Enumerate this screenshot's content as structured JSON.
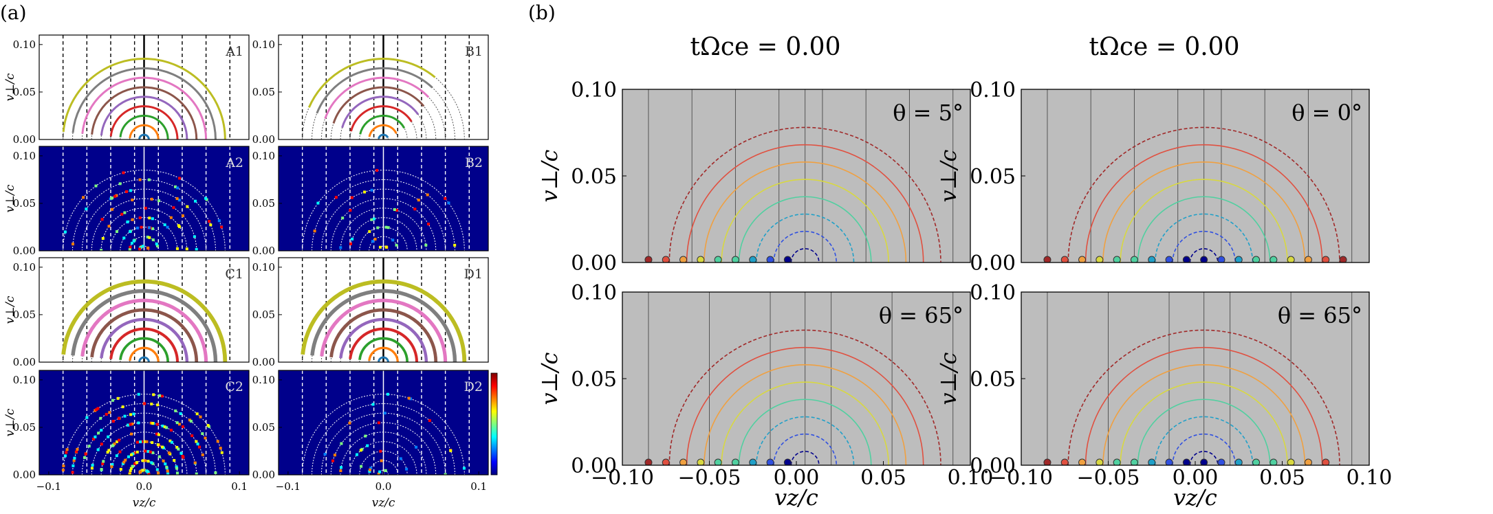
{
  "panel_labels": {
    "a": "(a)",
    "b": "(b)"
  },
  "colorbar": {
    "colors": [
      "#00007f",
      "#0000ff",
      "#007fff",
      "#00ffff",
      "#7fff7f",
      "#ffff00",
      "#ff7f00",
      "#ff0000",
      "#7f0000"
    ]
  },
  "chart_data": [
    {
      "type": "scatter",
      "group": "a",
      "panels": [
        {
          "id": "A1",
          "label": "A1",
          "kind": "rings",
          "partial": false,
          "ylabel": "v⊥/c"
        },
        {
          "id": "B1",
          "label": "B1",
          "kind": "rings",
          "partial": true,
          "ylabel": ""
        },
        {
          "id": "A2",
          "label": "A2",
          "kind": "heatmap",
          "density": "low",
          "ylabel": "v⊥/c"
        },
        {
          "id": "B2",
          "label": "B2",
          "kind": "heatmap",
          "density": "sparse",
          "ylabel": ""
        },
        {
          "id": "C1",
          "label": "C1",
          "kind": "rings",
          "partial": false,
          "thick": true,
          "ylabel": "v⊥/c"
        },
        {
          "id": "D1",
          "label": "D1",
          "kind": "rings",
          "partial": false,
          "thick": true,
          "ylabel": ""
        },
        {
          "id": "C2",
          "label": "C2",
          "kind": "heatmap",
          "density": "high",
          "ylabel": "v⊥/c"
        },
        {
          "id": "D2",
          "label": "D2",
          "kind": "heatmap",
          "density": "sparse",
          "ylabel": ""
        }
      ],
      "ring_radii": [
        0.005,
        0.015,
        0.025,
        0.035,
        0.045,
        0.055,
        0.065,
        0.075,
        0.085
      ],
      "ring_colors": [
        "#1f77b4",
        "#ff7f0e",
        "#2ca02c",
        "#d62728",
        "#9467bd",
        "#8c564b",
        "#e377c2",
        "#7f7f7f",
        "#bcbd22"
      ],
      "vertical_lines_x": [
        -0.085,
        -0.06,
        -0.035,
        -0.01,
        0.015,
        0.04,
        0.065,
        0.09
      ],
      "xlim": [
        -0.11,
        0.11
      ],
      "ylim": [
        0,
        0.11
      ],
      "yticks": [
        "0.00",
        "0.05",
        "0.10"
      ],
      "xticks": [
        "−0.1",
        "0.0",
        "0.1"
      ],
      "xlabel": "vz/c"
    },
    {
      "type": "scatter",
      "group": "b",
      "columns": [
        {
          "title": "tΩce = 0.00"
        },
        {
          "title": "tΩce = 0.00"
        }
      ],
      "panels": [
        {
          "id": "b1",
          "theta": "θ = 5°",
          "rings": 8,
          "dots_x": [
            -0.085,
            -0.075,
            -0.065,
            -0.055,
            -0.045,
            -0.035,
            -0.025,
            -0.015,
            -0.005
          ],
          "vlines": [
            -0.085,
            -0.06,
            -0.035,
            -0.01,
            0.015,
            0.04,
            0.065,
            0.09
          ]
        },
        {
          "id": "b2",
          "theta": "θ = 0°",
          "rings": 8,
          "dots_x": [
            -0.085,
            -0.075,
            -0.065,
            -0.055,
            -0.045,
            -0.035,
            -0.025,
            -0.015,
            -0.005,
            0.005,
            0.015,
            0.025,
            0.035,
            0.045,
            0.055,
            0.065,
            0.075,
            0.085
          ],
          "vlines": [
            -0.085,
            -0.06,
            -0.035,
            -0.01,
            0.015,
            0.04,
            0.065,
            0.09
          ]
        },
        {
          "id": "b3",
          "theta": "θ = 65°",
          "rings": 8,
          "dots_x": [
            -0.085,
            -0.075,
            -0.065,
            -0.055,
            -0.045,
            -0.035,
            -0.025,
            -0.015,
            -0.005
          ],
          "vlines": [
            -0.085,
            -0.05,
            -0.015,
            0.02,
            0.055,
            0.09
          ]
        },
        {
          "id": "b4",
          "theta": "θ = 65°",
          "rings": 8,
          "dots_x": [
            -0.085,
            -0.075,
            -0.065,
            -0.055,
            -0.045,
            -0.035,
            -0.025,
            -0.015,
            -0.005,
            0.005,
            0.015,
            0.025,
            0.035,
            0.045,
            0.055,
            0.065,
            0.075
          ],
          "vlines": [
            -0.085,
            -0.05,
            -0.015,
            0.02,
            0.055,
            0.09
          ]
        }
      ],
      "ring_radii": [
        0.008,
        0.018,
        0.028,
        0.038,
        0.048,
        0.058,
        0.068,
        0.078
      ],
      "ring_colors": [
        "#00008b",
        "#3050e0",
        "#20a0c8",
        "#50d0a0",
        "#d8d840",
        "#f0a040",
        "#e05040",
        "#a02828"
      ],
      "xlim": [
        -0.1,
        0.1
      ],
      "ylim": [
        0,
        0.1
      ],
      "yticks": [
        "0.00",
        "0.05",
        "0.10"
      ],
      "xticks": [
        "−0.10",
        "−0.05",
        "0.00",
        "0.05",
        "0.10"
      ],
      "xlabel": "vz/c",
      "ylabel": "v⊥/c",
      "background": "#bdbdbd"
    }
  ]
}
